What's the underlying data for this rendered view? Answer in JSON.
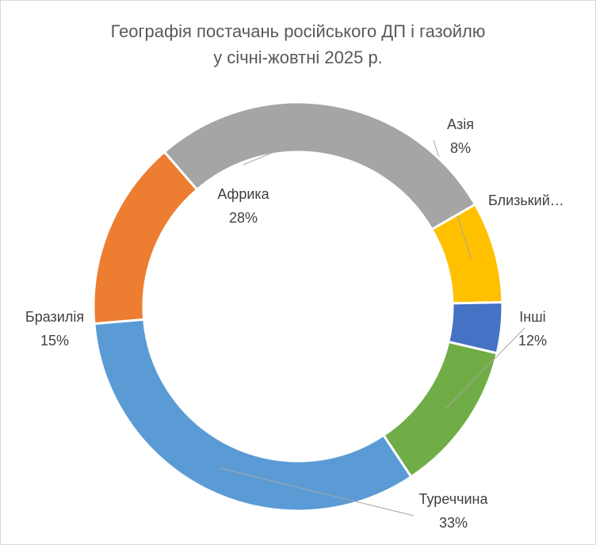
{
  "chart_data": {
    "type": "pie",
    "variant": "doughnut",
    "title_lines": [
      "Географія постачань російського ДП і газойлю",
      "у січні-жовтні 2025 р."
    ],
    "slices": [
      {
        "label": "Азія",
        "value": 8,
        "value_label": "8%",
        "color": "#ffc000"
      },
      {
        "label": "Близький…",
        "value": 4,
        "value_label": "",
        "color": "#4472c4"
      },
      {
        "label": "Інші",
        "value": 12,
        "value_label": "12%",
        "color": "#70ad47"
      },
      {
        "label": "Туреччина",
        "value": 33,
        "value_label": "33%",
        "color": "#5b9bd5"
      },
      {
        "label": "Бразилія",
        "value": 15,
        "value_label": "15%",
        "color": "#ed7d31"
      },
      {
        "label": "Африка",
        "value": 28,
        "value_label": "28%",
        "color": "#a5a5a5"
      }
    ],
    "legend": "none"
  }
}
